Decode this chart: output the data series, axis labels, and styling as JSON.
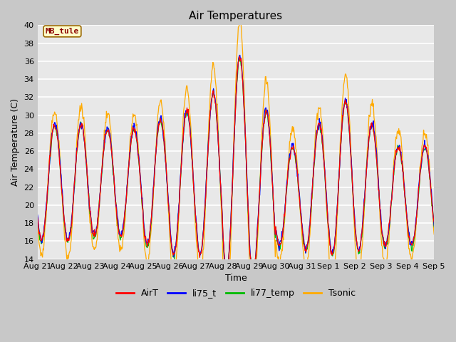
{
  "title": "Air Temperatures",
  "xlabel": "Time",
  "ylabel": "Air Temperature (C)",
  "annotation": "MB_tule",
  "ylim": [
    14,
    40
  ],
  "yticks": [
    14,
    16,
    18,
    20,
    22,
    24,
    26,
    28,
    30,
    32,
    34,
    36,
    38,
    40
  ],
  "xtick_labels": [
    "Aug 21",
    "Aug 22",
    "Aug 23",
    "Aug 24",
    "Aug 25",
    "Aug 26",
    "Aug 27",
    "Aug 28",
    "Aug 29",
    "Aug 30",
    "Aug 31",
    "Sep 1",
    "Sep 2",
    "Sep 3",
    "Sep 4",
    "Sep 5"
  ],
  "series_colors": {
    "AirT": "#ff0000",
    "li75_t": "#0000ff",
    "li77_temp": "#00bb00",
    "Tsonic": "#ffaa00"
  },
  "fig_bg_color": "#c8c8c8",
  "plot_bg_color": "#e8e8e8",
  "grid_color": "#ffffff",
  "title_fontsize": 11,
  "axis_fontsize": 9,
  "tick_fontsize": 8,
  "day_amplitudes": [
    6.5,
    6.5,
    6.0,
    6.0,
    7.0,
    8.0,
    9.0,
    12.0,
    9.0,
    5.5,
    7.0,
    8.5,
    7.0,
    5.5,
    5.5
  ],
  "day_bases": [
    22.5,
    22.5,
    22.5,
    22.5,
    22.5,
    22.5,
    23.5,
    24.5,
    21.5,
    21.0,
    22.0,
    23.0,
    22.0,
    21.0,
    21.0
  ],
  "tsonic_extra_amp": [
    1.5,
    2.0,
    1.5,
    1.5,
    2.0,
    2.5,
    3.0,
    4.0,
    3.5,
    2.0,
    2.0,
    3.0,
    2.5,
    2.0,
    1.5
  ]
}
